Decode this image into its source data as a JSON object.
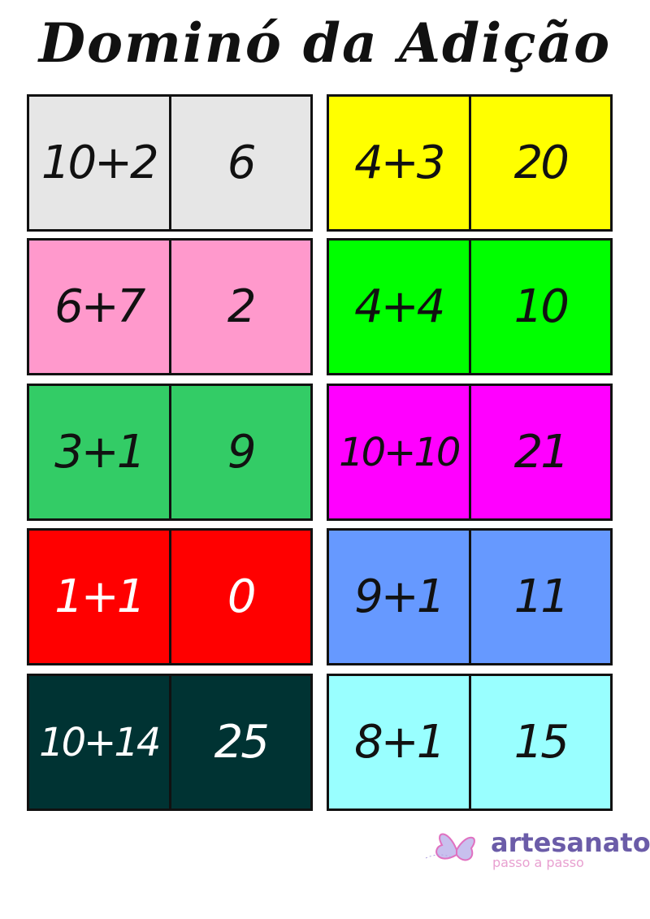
{
  "title": "Dominó da Adição",
  "dominoes": [
    {
      "left": "10+2",
      "right": "6",
      "color": "#e6e6e6",
      "text": "#111111"
    },
    {
      "left": "4+3",
      "right": "20",
      "color": "#ffff00",
      "text": "#111111"
    },
    {
      "left": "6+7",
      "right": "2",
      "color": "#ff99cc",
      "text": "#111111"
    },
    {
      "left": "4+4",
      "right": "10",
      "color": "#00ff00",
      "text": "#111111"
    },
    {
      "left": "3+1",
      "right": "9",
      "color": "#33cc66",
      "text": "#111111"
    },
    {
      "left": "10+10",
      "right": "21",
      "color": "#ff00ff",
      "text": "#111111"
    },
    {
      "left": "1+1",
      "right": "0",
      "color": "#ff0000",
      "text": "#ffffff"
    },
    {
      "left": "9+1",
      "right": "11",
      "color": "#6699ff",
      "text": "#111111"
    },
    {
      "left": "10+14",
      "right": "25",
      "color": "#003333",
      "text": "#ffffff"
    },
    {
      "left": "8+1",
      "right": "15",
      "color": "#99ffff",
      "text": "#111111"
    }
  ],
  "logo": {
    "name": "artesanato",
    "tagline": "passo a passo",
    "icon": "butterfly-icon"
  }
}
